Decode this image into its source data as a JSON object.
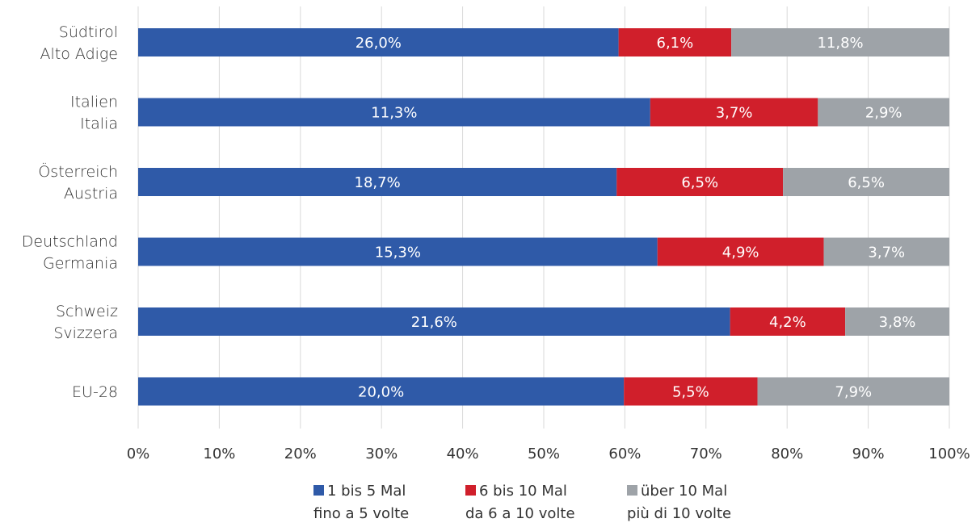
{
  "chart_data": {
    "type": "bar",
    "orientation": "horizontal",
    "stacked": true,
    "percent_stacked": true,
    "categories": [
      [
        "Südtirol",
        "Alto Adige"
      ],
      [
        "Italien",
        "Italia"
      ],
      [
        "Österreich",
        "Austria"
      ],
      [
        "Deutschland",
        "Germania"
      ],
      [
        "Schweiz",
        "Svizzera"
      ],
      [
        "EU-28"
      ]
    ],
    "series": [
      {
        "name": [
          "1 bis 5 Mal",
          "fino a 5 volte"
        ],
        "color": "#2f5aa8",
        "values": [
          26.0,
          11.3,
          18.7,
          15.3,
          21.6,
          20.0
        ],
        "labels": [
          "26,0%",
          "11,3%",
          "18,7%",
          "15,3%",
          "21,6%",
          "20,0%"
        ]
      },
      {
        "name": [
          "6 bis 10 Mal",
          "da 6 a 10 volte"
        ],
        "color": "#d01f2b",
        "values": [
          6.1,
          3.7,
          6.5,
          4.9,
          4.2,
          5.5
        ],
        "labels": [
          "6,1%",
          "3,7%",
          "6,5%",
          "4,9%",
          "4,2%",
          "5,5%"
        ]
      },
      {
        "name": [
          "über 10 Mal",
          "più di 10 volte"
        ],
        "color": "#9ea3a8",
        "values": [
          11.8,
          2.9,
          6.5,
          3.7,
          3.8,
          7.9
        ],
        "labels": [
          "11,8%",
          "2,9%",
          "6,5%",
          "3,7%",
          "3,8%",
          "7,9%"
        ]
      }
    ],
    "xlim": [
      0,
      100
    ],
    "x_ticks": [
      "0%",
      "10%",
      "20%",
      "30%",
      "40%",
      "50%",
      "60%",
      "70%",
      "80%",
      "90%",
      "100%"
    ],
    "grid": "vertical",
    "legend": "bottom-center",
    "title": "",
    "xlabel": "",
    "ylabel": ""
  }
}
